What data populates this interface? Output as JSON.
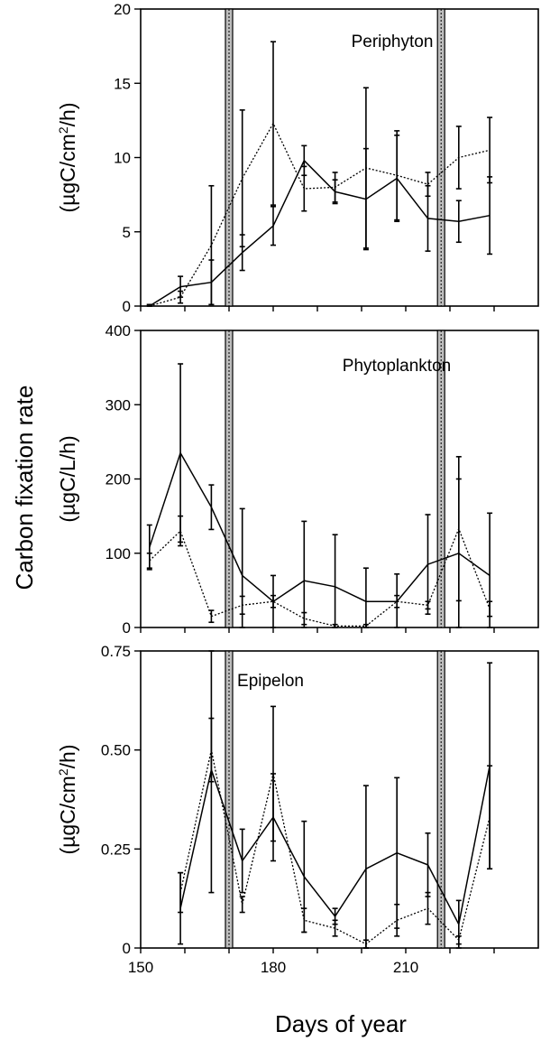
{
  "chart_data": {
    "type": "line",
    "shared_ylabel": "Carbon fixation rate",
    "xlabel": "Days of year",
    "xlim": [
      150,
      240
    ],
    "xticks": [
      150,
      180,
      210
    ],
    "event_lines_x": [
      170,
      218
    ],
    "panels": [
      {
        "title": "Periphyton",
        "ylabel_parts": [
          "(µgC/cm",
          "2",
          "/h)"
        ],
        "ylim": [
          0,
          20
        ],
        "yticks": [
          0,
          5,
          10,
          15,
          20
        ],
        "series": [
          {
            "style": "solid",
            "x": [
              152,
              159,
              166,
              173,
              180,
              187,
              194,
              201,
              208,
              215,
              222,
              229
            ],
            "y": [
              0,
              1.3,
              1.6,
              3.6,
              5.4,
              9.8,
              7.7,
              7.2,
              8.6,
              5.9,
              5.7,
              6.1
            ],
            "err": [
              0.1,
              0.7,
              1.5,
              1.2,
              1.3,
              1.0,
              0.8,
              3.4,
              2.9,
              2.2,
              1.4,
              2.6
            ]
          },
          {
            "style": "dotted",
            "x": [
              152,
              159,
              166,
              173,
              180,
              187,
              194,
              201,
              208,
              215,
              222,
              229
            ],
            "y": [
              0,
              0.6,
              4.1,
              8.6,
              12.3,
              7.9,
              8.0,
              9.3,
              8.8,
              8.2,
              10.0,
              10.5
            ],
            "err": [
              0.1,
              0.4,
              4.0,
              4.6,
              5.5,
              1.5,
              1.0,
              5.4,
              3.0,
              0.8,
              2.1,
              2.2
            ]
          }
        ]
      },
      {
        "title": "Phytoplankton",
        "ylabel_parts": [
          "(µgC/L/h)"
        ],
        "ylim": [
          0,
          400
        ],
        "yticks": [
          0,
          100,
          200,
          300,
          400
        ],
        "series": [
          {
            "style": "solid",
            "x": [
              152,
              159,
              166,
              173,
              180,
              187,
              194,
              201,
              208,
              215,
              222,
              229
            ],
            "y": [
              108,
              235,
              162,
              70,
              35,
              63,
              55,
              35,
              35,
              85,
              100,
              70
            ],
            "err": [
              30,
              120,
              30,
              90,
              35,
              80,
              70,
              45,
              37,
              67,
              100,
              84
            ]
          },
          {
            "style": "dotted",
            "x": [
              152,
              159,
              166,
              173,
              180,
              187,
              194,
              201,
              208,
              215,
              222,
              229
            ],
            "y": [
              90,
              130,
              15,
              30,
              35,
              12,
              2,
              2,
              35,
              30,
              133,
              25
            ],
            "err": [
              10,
              20,
              8,
              12,
              8,
              8,
              2,
              2,
              8,
              5,
              97,
              10
            ]
          }
        ]
      },
      {
        "title": "Epipelon",
        "ylabel_parts": [
          "(µgC/cm",
          "2",
          "/h)"
        ],
        "ylim": [
          0,
          0.75
        ],
        "yticks": [
          0,
          0.25,
          0.5,
          0.75
        ],
        "ytick_labels": [
          "0",
          "0.25",
          "0.50",
          "0.75"
        ],
        "series": [
          {
            "style": "solid",
            "x": [
              159,
              166,
              173,
              180,
              187,
              194,
              201,
              208,
              215,
              222,
              229
            ],
            "y": [
              0.1,
              0.45,
              0.22,
              0.33,
              0.18,
              0.08,
              0.2,
              0.24,
              0.21,
              0.06,
              0.46
            ],
            "err": [
              0.09,
              0.31,
              0.08,
              0.11,
              0.14,
              0.02,
              0.21,
              0.19,
              0.08,
              0.06,
              0.26
            ]
          },
          {
            "style": "dotted",
            "x": [
              159,
              166,
              173,
              180,
              187,
              194,
              201,
              208,
              215,
              222,
              229
            ],
            "y": [
              0.14,
              0.5,
              0.11,
              0.44,
              0.07,
              0.05,
              0.01,
              0.07,
              0.1,
              0.02,
              0.33
            ],
            "err": [
              0.05,
              0.08,
              0.02,
              0.17,
              0.03,
              0.02,
              0.01,
              0.04,
              0.04,
              0.01,
              0.13
            ]
          }
        ]
      }
    ]
  }
}
